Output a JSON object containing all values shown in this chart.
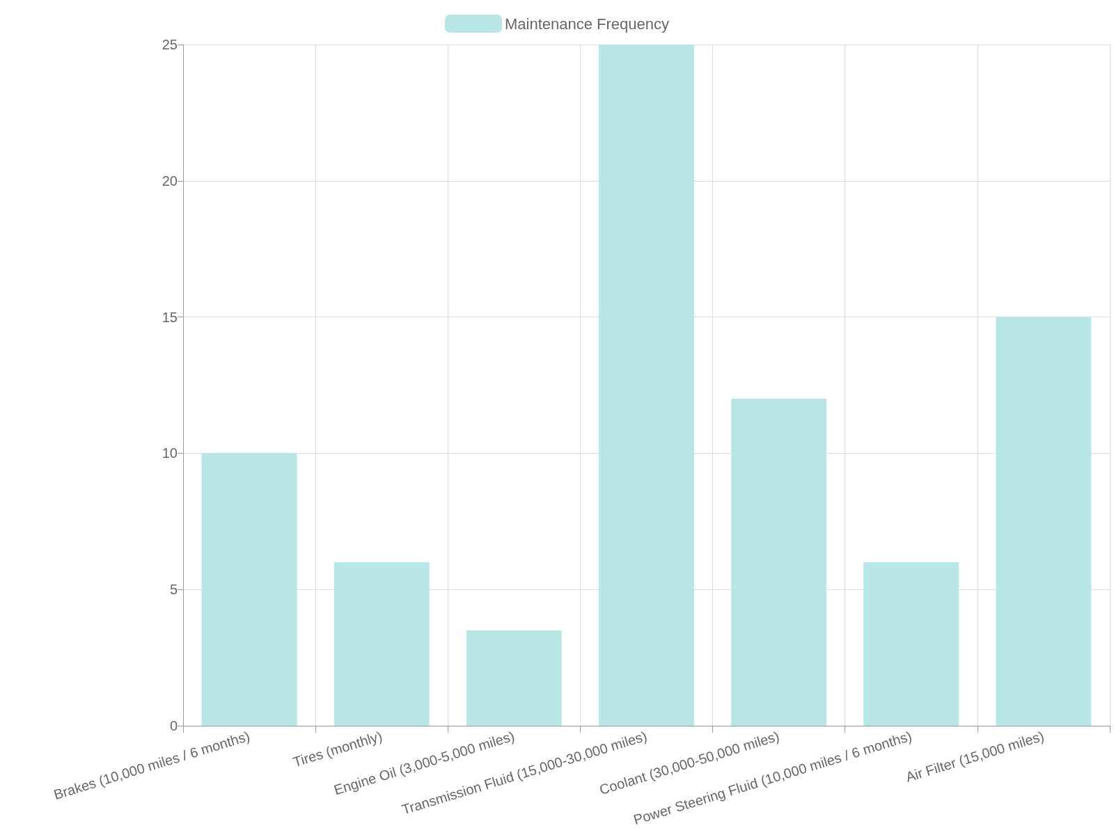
{
  "chart_data": {
    "type": "bar",
    "categories": [
      "Brakes (10,000 miles / 6 months)",
      "Tires (monthly)",
      "Engine Oil (3,000-5,000 miles)",
      "Transmission Fluid (15,000-30,000 miles)",
      "Coolant (30,000-50,000 miles)",
      "Power Steering Fluid (10,000 miles / 6 months)",
      "Air Filter (15,000 miles)"
    ],
    "series": [
      {
        "name": "Maintenance Frequency",
        "color": "#b8e6e6",
        "values": [
          10,
          6,
          3.5,
          25,
          12,
          6,
          15
        ]
      }
    ],
    "ylim": [
      0,
      25
    ],
    "yticks": [
      0,
      5,
      10,
      15,
      20,
      25
    ],
    "grid": true,
    "legend": "top"
  }
}
